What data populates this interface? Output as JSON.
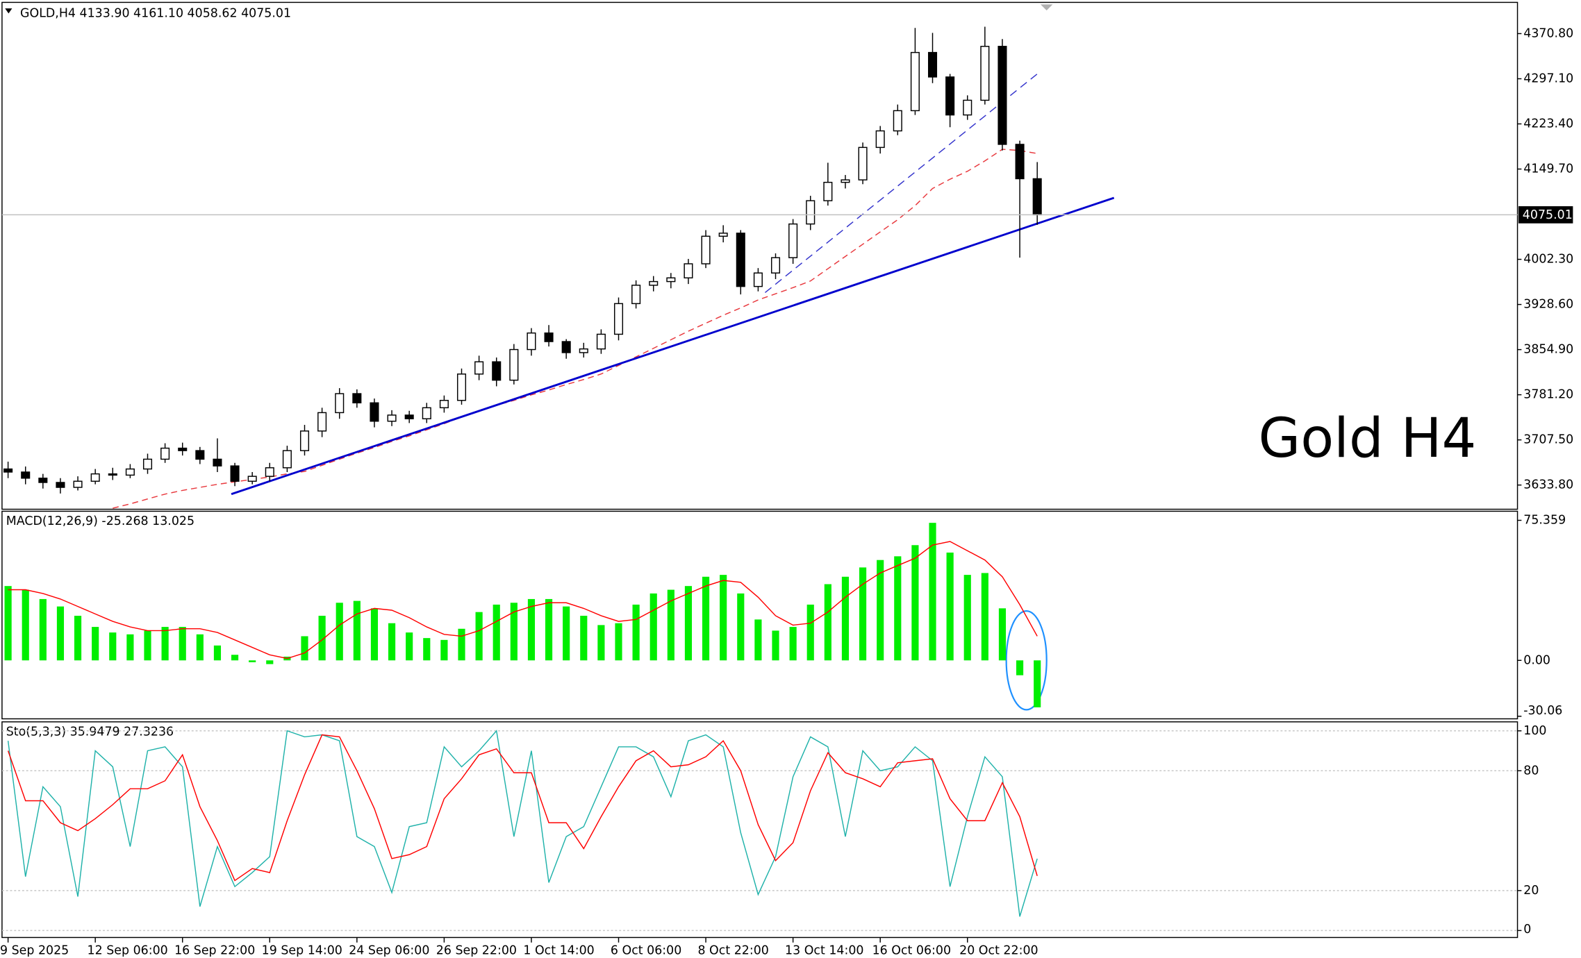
{
  "chart_data": [
    {
      "type": "candlestick",
      "title": "GOLD,H4  4133.90 4161.10 4058.62 4075.01",
      "annotation": "Gold H4",
      "ylim": [
        3594.3,
        4421.8
      ],
      "yticks": [
        {
          "value": 4370.8,
          "label": "4370.80"
        },
        {
          "value": 4297.1,
          "label": "4297.10"
        },
        {
          "value": 4223.4,
          "label": "4223.40"
        },
        {
          "value": 4149.7,
          "label": "4149.70"
        },
        {
          "value": 4002.3,
          "label": "4002.30"
        },
        {
          "value": 3928.6,
          "label": "3928.60"
        },
        {
          "value": 3854.9,
          "label": "3854.90"
        },
        {
          "value": 3781.2,
          "label": "3781.20"
        },
        {
          "value": 3707.5,
          "label": "3707.50"
        },
        {
          "value": 3633.8,
          "label": "3633.80"
        }
      ],
      "price_line": {
        "value": 4075.01,
        "label": "4075.01",
        "color": "#c0c0c0"
      },
      "up_color": "#ffffff",
      "down_color": "#000000",
      "open": [
        3660,
        3655,
        3645,
        3638,
        3630,
        3640,
        3652,
        3650,
        3660,
        3676,
        3694,
        3690,
        3676,
        3665,
        3640,
        3648,
        3662,
        3690,
        3722,
        3752,
        3783,
        3768,
        3738,
        3748,
        3742,
        3760,
        3772,
        3815,
        3835,
        3805,
        3855,
        3882,
        3868,
        3850,
        3856,
        3880,
        3930,
        3960,
        3966,
        3972,
        3995,
        4040,
        4045,
        3958,
        3980,
        4005,
        4060,
        4098,
        4128,
        4132,
        4185,
        4212,
        4245,
        4340,
        4300,
        4238,
        4262,
        4350,
        4190,
        4133.9
      ],
      "high": [
        3672,
        3664,
        3652,
        3645,
        3648,
        3660,
        3662,
        3668,
        3685,
        3702,
        3703,
        3696,
        3710,
        3670,
        3655,
        3670,
        3698,
        3732,
        3760,
        3792,
        3790,
        3775,
        3756,
        3755,
        3768,
        3780,
        3824,
        3845,
        3842,
        3864,
        3890,
        3895,
        3872,
        3866,
        3888,
        3940,
        3968,
        3975,
        3980,
        4003,
        4050,
        4058,
        4050,
        3988,
        4012,
        4068,
        4106,
        4160,
        4140,
        4193,
        4220,
        4255,
        4380,
        4372,
        4305,
        4270,
        4382,
        4362,
        4196,
        4161.1
      ],
      "low": [
        3645,
        3635,
        3628,
        3620,
        3625,
        3635,
        3642,
        3645,
        3652,
        3670,
        3682,
        3668,
        3655,
        3632,
        3635,
        3640,
        3655,
        3682,
        3712,
        3742,
        3760,
        3728,
        3730,
        3735,
        3735,
        3752,
        3765,
        3805,
        3795,
        3798,
        3845,
        3860,
        3840,
        3842,
        3848,
        3870,
        3922,
        3950,
        3955,
        3962,
        3988,
        4030,
        3945,
        3950,
        3970,
        3995,
        4050,
        4090,
        4118,
        4125,
        4175,
        4205,
        4238,
        4290,
        4218,
        4230,
        4255,
        4180,
        4005,
        4058.62
      ],
      "close": [
        3655,
        3645,
        3638,
        3630,
        3640,
        3652,
        3650,
        3660,
        3676,
        3694,
        3690,
        3676,
        3665,
        3640,
        3648,
        3662,
        3690,
        3722,
        3752,
        3783,
        3768,
        3738,
        3748,
        3742,
        3760,
        3772,
        3815,
        3835,
        3805,
        3855,
        3882,
        3868,
        3850,
        3856,
        3880,
        3930,
        3960,
        3966,
        3972,
        3995,
        4040,
        4045,
        3958,
        3980,
        4005,
        4060,
        4098,
        4128,
        4132,
        4185,
        4212,
        4245,
        4340,
        4300,
        4238,
        4262,
        4350,
        4190,
        4133.9,
        4075.01
      ],
      "ma": {
        "color": "#e8383d",
        "values": [
          null,
          null,
          null,
          null,
          null,
          null,
          3596,
          3603,
          3611,
          3619,
          3625,
          3630,
          3635,
          3639,
          3643,
          3647,
          3652,
          3656,
          3666,
          3676,
          3686,
          3695,
          3705,
          3714,
          3724,
          3734,
          3745,
          3755,
          3764,
          3772,
          3781,
          3789,
          3798,
          3806,
          3815,
          3829,
          3843,
          3857,
          3871,
          3885,
          3898,
          3911,
          3923,
          3936,
          3946,
          3956,
          3967,
          3987,
          4007,
          4027,
          4047,
          4067,
          4090,
          4118,
          4133,
          4146,
          4163,
          4182,
          4180,
          4175
        ]
      },
      "trendlines": [
        {
          "color": "#0000cd",
          "dashed": false,
          "x": [
            12.8,
            63.4
          ],
          "y": [
            3619,
            4102.7
          ]
        },
        {
          "color": "#3333cc",
          "dashed": true,
          "x": [
            43.4,
            59
          ],
          "y": [
            3948,
            4305
          ]
        }
      ]
    },
    {
      "type": "macd",
      "title": "MACD(12,26,9) -25.268 13.025",
      "ylim": [
        -31.45,
        80.24
      ],
      "yticks": [
        75.359,
        {
          "value": 0,
          "label": "0.00"
        },
        -30.06
      ],
      "series": [
        {
          "kind": "bar",
          "color": "#00ee00",
          "values": [
            40,
            38,
            33,
            29,
            24,
            18,
            15,
            14,
            16,
            18,
            18,
            14,
            8,
            3,
            -1,
            -2,
            2,
            13,
            24,
            31,
            32,
            28,
            20,
            15,
            12,
            11,
            17,
            26,
            30,
            31,
            33,
            33,
            29,
            24,
            19,
            20,
            30,
            36,
            38,
            40,
            45,
            46,
            36,
            22,
            16,
            18,
            30,
            41,
            45,
            50,
            54,
            56,
            62,
            74,
            58,
            46,
            47,
            28,
            -8,
            -25.268
          ]
        },
        {
          "kind": "line",
          "color": "#ff0000",
          "values": [
            38,
            38,
            36,
            33,
            29,
            25,
            21,
            18,
            16,
            16,
            17,
            17,
            15,
            11,
            7,
            3,
            1,
            4,
            11,
            19,
            25,
            28,
            27,
            23,
            18,
            14,
            13,
            16,
            21,
            26,
            29,
            31,
            31,
            28,
            24,
            21,
            22,
            27,
            32,
            36,
            40,
            43,
            42,
            34,
            24,
            19,
            20,
            26,
            34,
            41,
            47,
            51,
            55,
            62,
            64,
            59,
            54,
            45,
            30,
            13.025
          ]
        }
      ]
    },
    {
      "type": "stochastic",
      "title": "Sto(5,3,3) 35.9479 27.3236",
      "ylim": [
        -3.5,
        104.5
      ],
      "yticks": [
        100,
        80,
        20,
        0
      ],
      "grid": true,
      "categories": [
        "9 Sep 2025",
        null,
        null,
        null,
        null,
        "12 Sep 06:00",
        null,
        null,
        null,
        null,
        "16 Sep 22:00",
        null,
        null,
        null,
        null,
        "19 Sep 14:00",
        null,
        null,
        null,
        null,
        "24 Sep 06:00",
        null,
        null,
        null,
        null,
        "26 Sep 22:00",
        null,
        null,
        null,
        null,
        "1 Oct 14:00",
        null,
        null,
        null,
        null,
        "6 Oct 06:00",
        null,
        null,
        null,
        null,
        "8 Oct 22:00",
        null,
        null,
        null,
        null,
        "13 Oct 14:00",
        null,
        null,
        null,
        null,
        "16 Oct 06:00",
        null,
        null,
        null,
        null,
        "20 Oct 22:00",
        null,
        null,
        null,
        null
      ],
      "series": [
        {
          "color": "#20b2aa",
          "values": [
            95,
            27,
            72,
            62,
            17,
            90,
            82,
            42,
            90,
            92,
            82,
            12,
            42,
            22,
            29,
            37,
            100,
            97,
            98,
            95,
            47,
            42,
            19,
            52,
            54,
            92,
            82,
            90,
            100,
            47,
            90,
            24,
            47,
            52,
            72,
            92,
            92,
            87,
            67,
            95,
            98,
            92,
            49,
            18,
            37,
            77,
            97,
            92,
            47,
            90,
            80,
            82,
            92,
            85,
            22,
            57,
            87,
            77,
            7,
            35.9479
          ]
        },
        {
          "color": "#ff0000",
          "values": [
            90,
            65,
            65,
            54,
            50,
            56,
            63,
            71,
            71,
            75,
            88,
            62,
            45,
            25,
            31,
            29,
            55,
            78,
            98,
            97,
            80,
            61,
            36,
            38,
            42,
            66,
            76,
            88,
            91,
            79,
            79,
            54,
            54,
            41,
            57,
            72,
            85,
            90,
            82,
            83,
            87,
            95,
            80,
            53,
            35,
            44,
            70,
            89,
            79,
            76,
            72,
            84,
            85,
            86,
            66,
            55,
            55,
            74,
            57,
            27.3236
          ]
        }
      ]
    }
  ]
}
